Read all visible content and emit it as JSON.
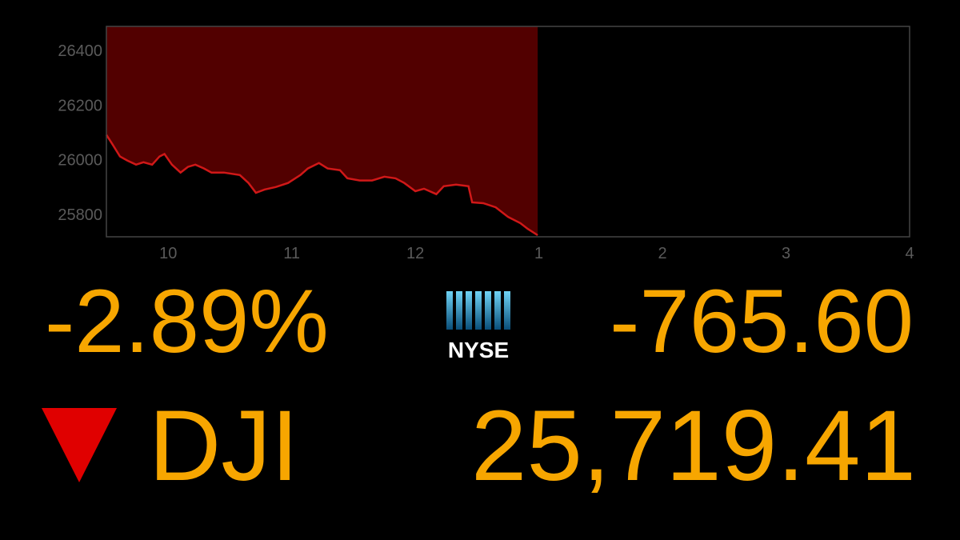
{
  "chart_data": {
    "type": "area",
    "x": [
      9.5,
      9.55,
      9.61,
      9.67,
      9.74,
      9.8,
      9.87,
      9.93,
      9.97,
      10.03,
      10.1,
      10.16,
      10.22,
      10.29,
      10.35,
      10.45,
      10.58,
      10.65,
      10.71,
      10.78,
      10.87,
      10.97,
      11.07,
      11.13,
      11.22,
      11.29,
      11.39,
      11.45,
      11.55,
      11.65,
      11.75,
      11.84,
      11.91,
      12.0,
      12.07,
      12.17,
      12.23,
      12.33,
      12.43,
      12.46,
      12.55,
      12.65,
      12.75,
      12.85,
      12.91,
      12.99
    ],
    "values": [
      26091,
      26056,
      26012,
      25997,
      25982,
      25991,
      25982,
      26012,
      26021,
      25982,
      25953,
      25974,
      25982,
      25968,
      25953,
      25953,
      25944,
      25915,
      25879,
      25891,
      25900,
      25915,
      25944,
      25968,
      25988,
      25968,
      25962,
      25932,
      25924,
      25924,
      25938,
      25932,
      25915,
      25885,
      25894,
      25874,
      25903,
      25909,
      25903,
      25844,
      25841,
      25826,
      25791,
      25768,
      25747,
      25724
    ],
    "color": "#d01818",
    "fill_color": "#520000",
    "xlim": [
      9.5,
      16
    ],
    "xticks": [
      10,
      11,
      12,
      {
        "value": 13,
        "label": "1"
      },
      {
        "value": 14,
        "label": "2"
      },
      {
        "value": 15,
        "label": "3"
      },
      {
        "value": 16,
        "label": "4"
      }
    ],
    "ylim": [
      25718,
      26488
    ],
    "yticks": [
      25800,
      26000,
      26200,
      26400
    ]
  },
  "ticker": {
    "percent_change": "-2.89%",
    "exchange": "NYSE",
    "point_change": "-765.60",
    "symbol": "DJI",
    "price": "25,719.41"
  }
}
